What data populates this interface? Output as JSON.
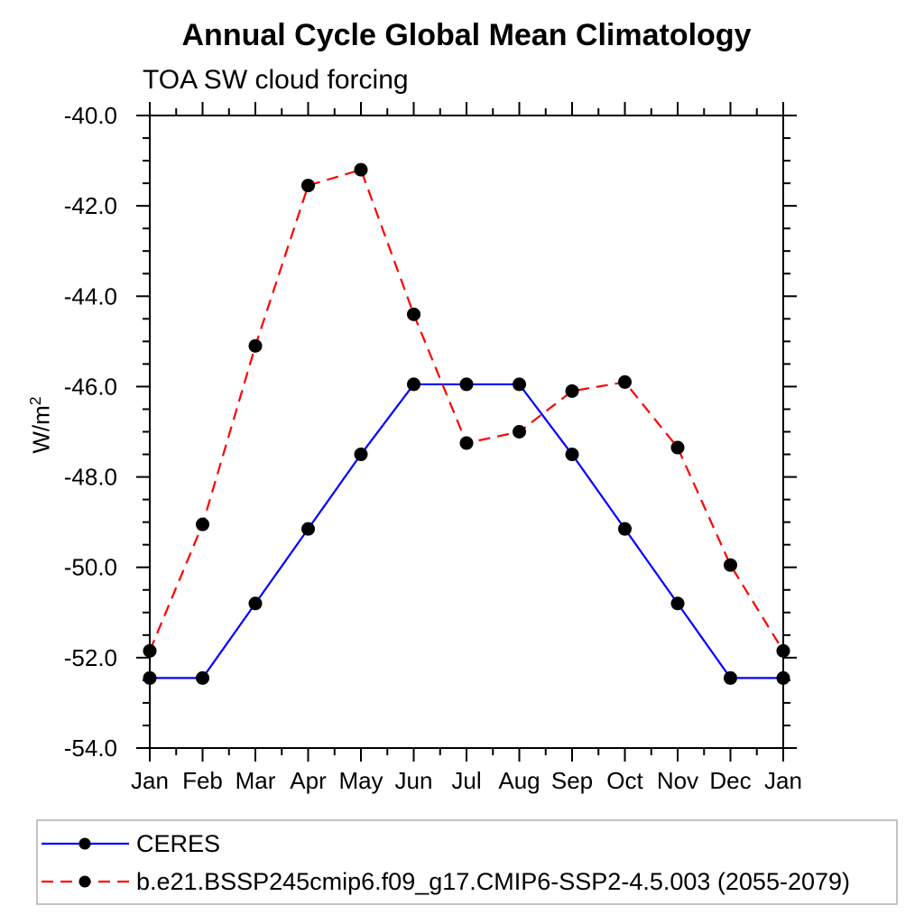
{
  "page": {
    "background": "#ffffff"
  },
  "chart_data": {
    "type": "line",
    "title": "Annual Cycle Global Mean Climatology",
    "subtitle": "TOA SW cloud forcing",
    "ylabel_base": "W/m",
    "ylabel_sup": "2",
    "xlabel": "",
    "categories": [
      "Jan",
      "Feb",
      "Mar",
      "Apr",
      "May",
      "Jun",
      "Jul",
      "Aug",
      "Sep",
      "Oct",
      "Nov",
      "Dec",
      "Jan"
    ],
    "ylim": [
      -54.0,
      -40.0
    ],
    "ytick_step": 2.0,
    "ytick_minor_step": 0.5,
    "ytick_labels": [
      "-40.0",
      "-42.0",
      "-44.0",
      "-46.0",
      "-48.0",
      "-50.0",
      "-52.0",
      "-54.0"
    ],
    "grid": false,
    "legend_position": "bottom-left",
    "series": [
      {
        "name": "CERES",
        "color": "#0000ff",
        "line_style": "solid",
        "marker": "circle",
        "marker_color": "#000000",
        "values": [
          -52.45,
          -52.45,
          -50.8,
          -49.15,
          -47.5,
          -45.95,
          -45.95,
          -45.95,
          -47.5,
          -49.15,
          -50.8,
          -52.45,
          -52.45
        ]
      },
      {
        "name": "b.e21.BSSP245cmip6.f09_g17.CMIP6-SSP2-4.5.003 (2055-2079)",
        "color": "#ff0000",
        "line_style": "dashed",
        "marker": "circle",
        "marker_color": "#000000",
        "values": [
          -51.85,
          -49.05,
          -45.1,
          -41.55,
          -41.2,
          -44.4,
          -47.25,
          -47.0,
          -46.1,
          -45.9,
          -47.35,
          -49.95,
          -51.85
        ]
      }
    ]
  },
  "colors": {
    "axis": "#000000",
    "text": "#000000",
    "legend_border": "#b0b0b0",
    "marker": "#000000"
  }
}
